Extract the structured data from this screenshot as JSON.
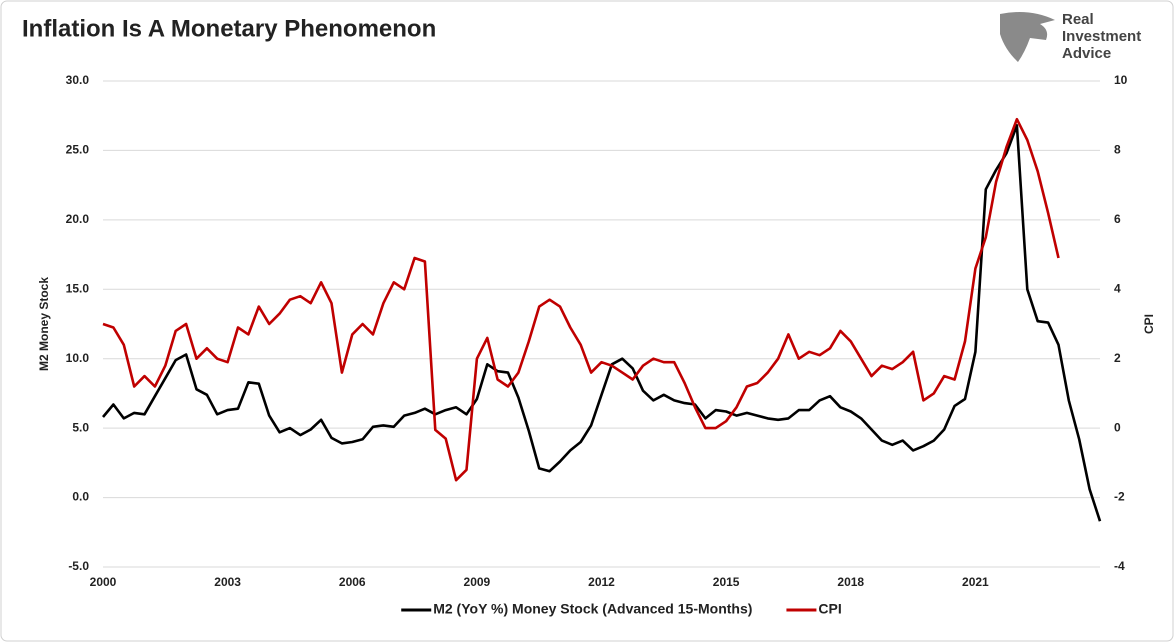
{
  "chart_data": {
    "type": "line",
    "title": "Inflation Is A Monetary Phenomenon",
    "brand": [
      "Real",
      "Investment",
      "Advice"
    ],
    "ylabel": "M2 Money Stock",
    "y2label": "CPI",
    "x": [
      2000,
      2000.25,
      2000.5,
      2000.75,
      2001,
      2001.25,
      2001.5,
      2001.75,
      2002,
      2002.25,
      2002.5,
      2002.75,
      2003,
      2003.25,
      2003.5,
      2003.75,
      2004,
      2004.25,
      2004.5,
      2004.75,
      2005,
      2005.25,
      2005.5,
      2005.75,
      2006,
      2006.25,
      2006.5,
      2006.75,
      2007,
      2007.25,
      2007.5,
      2007.75,
      2008,
      2008.25,
      2008.5,
      2008.75,
      2009,
      2009.25,
      2009.5,
      2009.75,
      2010,
      2010.25,
      2010.5,
      2010.75,
      2011,
      2011.25,
      2011.5,
      2011.75,
      2012,
      2012.25,
      2012.5,
      2012.75,
      2013,
      2013.25,
      2013.5,
      2013.75,
      2014,
      2014.25,
      2014.5,
      2014.75,
      2015,
      2015.25,
      2015.5,
      2015.75,
      2016,
      2016.25,
      2016.5,
      2016.75,
      2017,
      2017.25,
      2017.5,
      2017.75,
      2018,
      2018.25,
      2018.5,
      2018.75,
      2019,
      2019.25,
      2019.5,
      2019.75,
      2020,
      2020.25,
      2020.5,
      2020.75,
      2021,
      2021.25,
      2021.5,
      2021.75,
      2022,
      2022.25,
      2022.5,
      2022.75,
      2023,
      2023.25,
      2023.5,
      2023.75,
      2024
    ],
    "xlim": [
      2000,
      2024
    ],
    "xticks": [
      2000,
      2003,
      2006,
      2009,
      2012,
      2015,
      2018,
      2021
    ],
    "ylim": [
      -5,
      30
    ],
    "yticks": [
      {
        "value": -5,
        "label": "-5.0"
      },
      {
        "value": 0,
        "label": "0.0"
      },
      {
        "value": 5,
        "label": "5.0"
      },
      {
        "value": 10,
        "label": "10.0"
      },
      {
        "value": 15,
        "label": "15.0"
      },
      {
        "value": 20,
        "label": "20.0"
      },
      {
        "value": 25,
        "label": "25.0"
      },
      {
        "value": 30,
        "label": "30.0"
      }
    ],
    "y2lim": [
      -4,
      10
    ],
    "y2ticks": [
      -4,
      -2,
      0,
      2,
      4,
      6,
      8,
      10
    ],
    "grid": true,
    "legend": "bottom",
    "series": [
      {
        "name": "M2 (YoY %) Money Stock (Advanced 15-Months)",
        "color": "#000000",
        "values": [
          5.8,
          6.7,
          5.7,
          6.1,
          6.0,
          7.3,
          8.6,
          9.9,
          10.3,
          7.8,
          7.4,
          6.0,
          6.3,
          6.4,
          8.3,
          8.2,
          5.9,
          4.7,
          5.0,
          4.5,
          4.9,
          5.6,
          4.3,
          3.9,
          4.0,
          4.2,
          5.1,
          5.2,
          5.1,
          5.9,
          6.1,
          6.4,
          6.0,
          6.3,
          6.5,
          6.0,
          7.1,
          9.6,
          9.1,
          9.0,
          7.2,
          4.8,
          2.1,
          1.9,
          2.6,
          3.4,
          4.0,
          5.2,
          7.4,
          9.6,
          10.0,
          9.3,
          7.7,
          7.0,
          7.4,
          7.0,
          6.8,
          6.7,
          5.7,
          6.3,
          6.2,
          5.9,
          6.1,
          5.9,
          5.7,
          5.6,
          5.7,
          6.3,
          6.3,
          7.0,
          7.3,
          6.5,
          6.2,
          5.7,
          4.9,
          4.1,
          3.8,
          4.1,
          3.4,
          3.7,
          4.1,
          4.9,
          6.6,
          7.1,
          10.5,
          22.2,
          23.6,
          24.8,
          26.8,
          15.0,
          12.7,
          12.6,
          11.0,
          7.0,
          4.2,
          0.6,
          -1.7
        ]
      },
      {
        "name": "CPI",
        "color": "#c00000",
        "axis": "y2",
        "values": [
          3.0,
          2.9,
          2.4,
          1.2,
          1.5,
          1.2,
          1.8,
          2.8,
          3.0,
          2.0,
          2.3,
          2.0,
          1.9,
          2.9,
          2.7,
          3.5,
          3.0,
          3.3,
          3.7,
          3.8,
          3.6,
          4.2,
          3.6,
          1.6,
          2.7,
          3.0,
          2.7,
          3.6,
          4.2,
          4.0,
          4.9,
          4.8,
          -0.05,
          -0.3,
          -1.5,
          -1.2,
          2.0,
          2.6,
          1.4,
          1.2,
          1.6,
          2.5,
          3.5,
          3.7,
          3.5,
          2.9,
          2.4,
          1.6,
          1.9,
          1.8,
          1.6,
          1.4,
          1.8,
          2.0,
          1.9,
          1.9,
          1.3,
          0.6,
          0.0,
          0.0,
          0.2,
          0.6,
          1.2,
          1.3,
          1.6,
          2.0,
          2.7,
          2.0,
          2.2,
          2.1,
          2.3,
          2.8,
          2.5,
          2.0,
          1.5,
          1.8,
          1.7,
          1.9,
          2.2,
          0.8,
          1.0,
          1.5,
          1.4,
          2.5,
          4.6,
          5.5,
          7.1,
          8.1,
          8.9,
          8.3,
          7.4,
          6.2,
          4.9,
          null,
          null,
          null,
          null
        ]
      }
    ]
  }
}
